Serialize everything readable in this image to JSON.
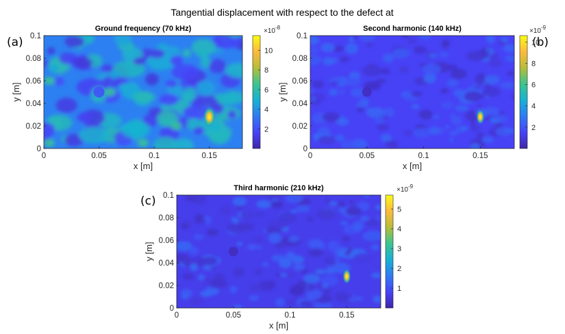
{
  "figure": {
    "suptitle": "Tangential displacement with respect to the defect at",
    "colormap": [
      "#3e26a8",
      "#4743f8",
      "#2f7bf4",
      "#18b1d4",
      "#3cc48f",
      "#b6bd3a",
      "#fcba3d",
      "#f9fb15"
    ]
  },
  "chart_data": [
    {
      "type": "heatmap",
      "panel_label": "(a)",
      "title": "Ground frequency (70 kHz)",
      "xlabel": "x [m]",
      "ylabel": "y [m]",
      "xlim": [
        0,
        0.18
      ],
      "ylim": [
        0,
        0.1
      ],
      "xticks": [
        "0",
        "0.05",
        "0.1",
        "0.15"
      ],
      "yticks": [
        "0",
        "0.02",
        "0.04",
        "0.06",
        "0.08",
        "0.1"
      ],
      "colorbar_exponent": "×10",
      "colorbar_power": "-8",
      "colorbar_ticks": [
        "2",
        "4",
        "6",
        "8",
        "10"
      ],
      "clim": [
        0,
        11.5
      ],
      "background_level": 0.3,
      "hotspot": {
        "x": 0.15,
        "y": 0.028,
        "value": 10.5
      },
      "defect_circle": {
        "x": 0.05,
        "y": 0.05
      }
    },
    {
      "type": "heatmap",
      "panel_label": "(b)",
      "title": "Second harmonic (140 kHz)",
      "xlabel": "x [m]",
      "ylabel": "y [m]",
      "xlim": [
        0,
        0.18
      ],
      "ylim": [
        0,
        0.1
      ],
      "xticks": [
        "0",
        "0.05",
        "0.1",
        "0.15"
      ],
      "yticks": [
        "0",
        "0.02",
        "0.04",
        "0.06",
        "0.08",
        "0.1"
      ],
      "colorbar_exponent": "×10",
      "colorbar_power": "-9",
      "colorbar_ticks": [
        "2",
        "4",
        "6",
        "8",
        "10"
      ],
      "clim": [
        0,
        10.6
      ],
      "background_level": 0.14,
      "hotspot": {
        "x": 0.15,
        "y": 0.028,
        "value": 10
      },
      "defect_circle": {
        "x": 0.05,
        "y": 0.05
      }
    },
    {
      "type": "heatmap",
      "panel_label": "(c)",
      "title": "Third harmonic (210 kHz)",
      "xlabel": "x [m]",
      "ylabel": "y [m]",
      "xlim": [
        0,
        0.18
      ],
      "ylim": [
        0,
        0.1
      ],
      "xticks": [
        "0",
        "0.05",
        "0.1",
        "0.15"
      ],
      "yticks": [
        "0",
        "0.02",
        "0.04",
        "0.06",
        "0.08",
        "0.1"
      ],
      "colorbar_exponent": "×10",
      "colorbar_power": "-9",
      "colorbar_ticks": [
        "1",
        "2",
        "3",
        "4",
        "5"
      ],
      "clim": [
        0,
        5.7
      ],
      "background_level": 0.12,
      "hotspot": {
        "x": 0.15,
        "y": 0.028,
        "value": 5.5
      },
      "defect_circle": {
        "x": 0.05,
        "y": 0.05
      }
    }
  ]
}
